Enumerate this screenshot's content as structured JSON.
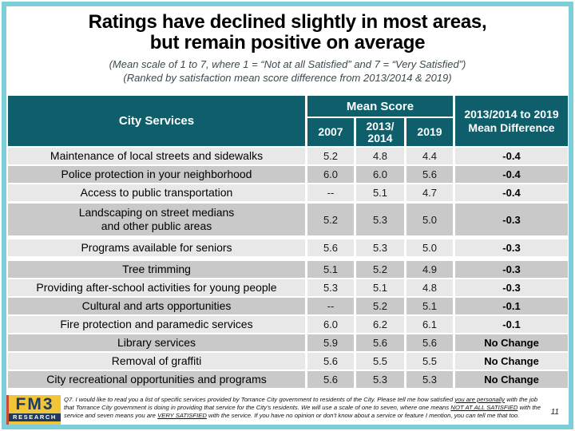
{
  "slide": {
    "title_line1": "Ratings have declined slightly in most areas,",
    "title_line2": "but remain positive on average",
    "subtitle_line1": "(Mean scale of 1 to 7, where 1 = “Not at all Satisfied” and 7 = “Very Satisfied”)",
    "subtitle_line2": "(Ranked by satisfaction mean score difference from 2013/2014 & 2019)"
  },
  "table": {
    "col_city_services": "City Services",
    "col_mean_score": "Mean Score",
    "col_2007": "2007",
    "col_2013_line1": "2013/",
    "col_2013_line2": "2014",
    "col_2019": "2019",
    "col_diff_line1": "2013/2014 to 2019",
    "col_diff_line2": "Mean Difference",
    "rows": [
      {
        "service": "Maintenance of local streets and sidewalks",
        "s2007": "5.2",
        "s2013": "4.8",
        "s2019": "4.4",
        "diff": "-0.4",
        "shade": "light",
        "gap": 2
      },
      {
        "service": "Police protection in your neighborhood",
        "s2007": "6.0",
        "s2013": "6.0",
        "s2019": "5.6",
        "diff": "-0.4",
        "shade": "dark",
        "gap": 2
      },
      {
        "service": "Access to public transportation",
        "s2007": "--",
        "s2013": "5.1",
        "s2019": "4.7",
        "diff": "-0.4",
        "shade": "light",
        "gap": 2
      },
      {
        "service": "Landscaping on street medians",
        "service2": "and other public areas",
        "s2007": "5.2",
        "s2013": "5.3",
        "s2019": "5.0",
        "diff": "-0.3",
        "shade": "dark",
        "gap": 3,
        "tall": true
      },
      {
        "service": "Programs available for seniors",
        "s2007": "5.6",
        "s2013": "5.3",
        "s2019": "5.0",
        "diff": "-0.3",
        "shade": "light",
        "gap": 5
      },
      {
        "service": "Tree trimming",
        "s2007": "5.1",
        "s2013": "5.2",
        "s2019": "4.9",
        "diff": "-0.3",
        "shade": "dark",
        "gap": 6
      },
      {
        "service": "Providing after-school activities for young people",
        "s2007": "5.3",
        "s2013": "5.1",
        "s2019": "4.8",
        "diff": "-0.3",
        "shade": "light",
        "gap": 2
      },
      {
        "service": "Cultural and arts opportunities",
        "s2007": "--",
        "s2013": "5.2",
        "s2019": "5.1",
        "diff": "-0.1",
        "shade": "dark",
        "gap": 2
      },
      {
        "service": "Fire protection and paramedic services",
        "s2007": "6.0",
        "s2013": "6.2",
        "s2019": "6.1",
        "diff": "-0.1",
        "shade": "light",
        "gap": 2
      },
      {
        "service": "Library services",
        "s2007": "5.9",
        "s2013": "5.6",
        "s2019": "5.6",
        "diff": "No Change",
        "shade": "dark",
        "gap": 2
      },
      {
        "service": "Removal of graffiti",
        "s2007": "5.6",
        "s2013": "5.5",
        "s2019": "5.5",
        "diff": "No Change",
        "shade": "light",
        "gap": 2
      },
      {
        "service": "City recreational opportunities and programs",
        "s2007": "5.6",
        "s2013": "5.3",
        "s2019": "5.3",
        "diff": "No Change",
        "shade": "dark",
        "gap": 2
      }
    ]
  },
  "footer": {
    "logo_fm3": "FM3",
    "logo_research": "RESEARCH",
    "page_number": "11",
    "note_segments": [
      {
        "text": "Q7. I would like to read you a list of specific services provided by Torrance City government to residents of the City. Please tell me how satisfied ",
        "u": false
      },
      {
        "text": "you are personally",
        "u": true
      },
      {
        "text": " with the job that Torrance City government is doing in providing that service for the City’s residents.  We will use a scale of one to seven, where one means ",
        "u": false
      },
      {
        "text": "NOT AT ALL SATISFIED",
        "u": true
      },
      {
        "text": " with the service and seven means you are ",
        "u": false
      },
      {
        "text": "VERY SATISFIED",
        "u": true
      },
      {
        "text": " with the service.  If you have no opinion or don’t know about a service or feature I mention, you can tell me that too.",
        "u": false
      }
    ]
  },
  "colors": {
    "header_teal": "#0E5F6B",
    "border_cyan": "#7CCFD9",
    "row_light": "#E8E8E8",
    "row_dark": "#C9C9C9",
    "subtitle_gray": "#3B4A4F",
    "logo_yellow": "#F2C437",
    "logo_navy": "#1E3A5F",
    "logo_red": "#C84B32"
  }
}
